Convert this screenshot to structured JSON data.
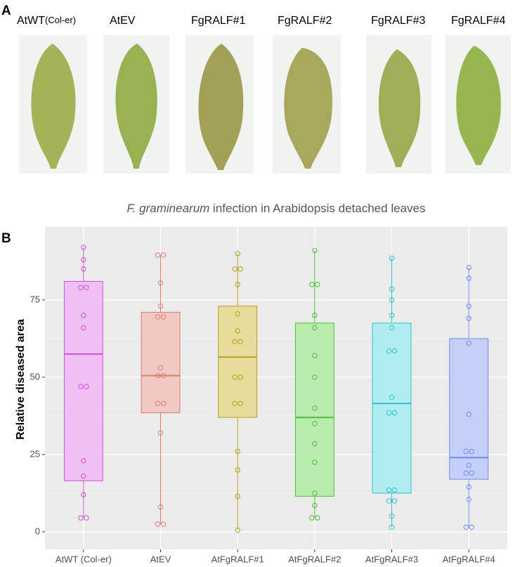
{
  "panel_a": {
    "letter": "A",
    "labels": [
      {
        "main": "AtWT",
        "sub": "(Col-er)"
      },
      {
        "main": "AtEV"
      },
      {
        "main": "FgRALF#1"
      },
      {
        "main": "FgRALF#2"
      },
      {
        "main": "FgRALF#3"
      },
      {
        "main": "FgRALF#4"
      }
    ]
  },
  "panel_b": {
    "letter": "B"
  },
  "chart_data": {
    "type": "box",
    "title_italic": "F. graminearum",
    "title_rest": " infection in Arabidopsis detached leaves",
    "y_label": "Relative diseased area",
    "categories": [
      "AtWT (Col-er)",
      "AtEV",
      "AtFgRALF#1",
      "AtFgRALF#2",
      "AtFgRALF#3",
      "AtFgRALF#4"
    ],
    "ylim": [
      -5.7,
      98.6
    ],
    "yticks": [
      0,
      25,
      50,
      75
    ],
    "grid": true,
    "boxes": [
      {
        "color": "#d24fd8",
        "fill": "#f0c0f5",
        "min": 4.5,
        "q1": 16.5,
        "median": 57.5,
        "q3": 81,
        "max": 92,
        "points": [
          92,
          88,
          85,
          79,
          79,
          70,
          66,
          47,
          47,
          23,
          18,
          12,
          4.5,
          4.5
        ]
      },
      {
        "color": "#e07a70",
        "fill": "#f0c9c4",
        "min": 2.5,
        "q1": 38.5,
        "median": 50.5,
        "q3": 71,
        "max": 89.5,
        "points": [
          89.5,
          89.5,
          80.5,
          73,
          69.5,
          69.5,
          53,
          50.5,
          50.5,
          41.5,
          41.5,
          32,
          8,
          2.5,
          2.5
        ]
      },
      {
        "color": "#b5a020",
        "fill": "#e8dc9a",
        "min": 0.5,
        "q1": 37,
        "median": 56.5,
        "q3": 73,
        "max": 90,
        "points": [
          90,
          85,
          85,
          80,
          70.5,
          65,
          61.5,
          61.5,
          50,
          50,
          41.5,
          41.5,
          26,
          20,
          11.5,
          0.5
        ]
      },
      {
        "color": "#4cbf3a",
        "fill": "#b9edb0",
        "min": 4.5,
        "q1": 11.5,
        "median": 37,
        "q3": 67.5,
        "max": 91,
        "points": [
          91,
          80,
          80,
          70,
          66,
          57,
          50,
          40,
          35,
          28.5,
          22.5,
          12.5,
          8.5,
          4.5,
          4.5
        ]
      },
      {
        "color": "#2cc4cc",
        "fill": "#b1edf0",
        "min": 1.5,
        "q1": 12.5,
        "median": 41.5,
        "q3": 67.5,
        "max": 88.5,
        "points": [
          88.5,
          78.5,
          75,
          70,
          66,
          58.5,
          58.5,
          43.5,
          38.5,
          38.5,
          13.5,
          13.5,
          10,
          10,
          5,
          1.5
        ]
      },
      {
        "color": "#6f8ef0",
        "fill": "#c5cff8",
        "min": 1.5,
        "q1": 17,
        "median": 24,
        "q3": 62.5,
        "max": 85.5,
        "points": [
          85.5,
          82,
          73,
          69,
          61,
          38,
          26,
          26,
          21.5,
          19,
          19,
          14.5,
          10.5,
          1.5,
          1.5
        ]
      }
    ]
  }
}
